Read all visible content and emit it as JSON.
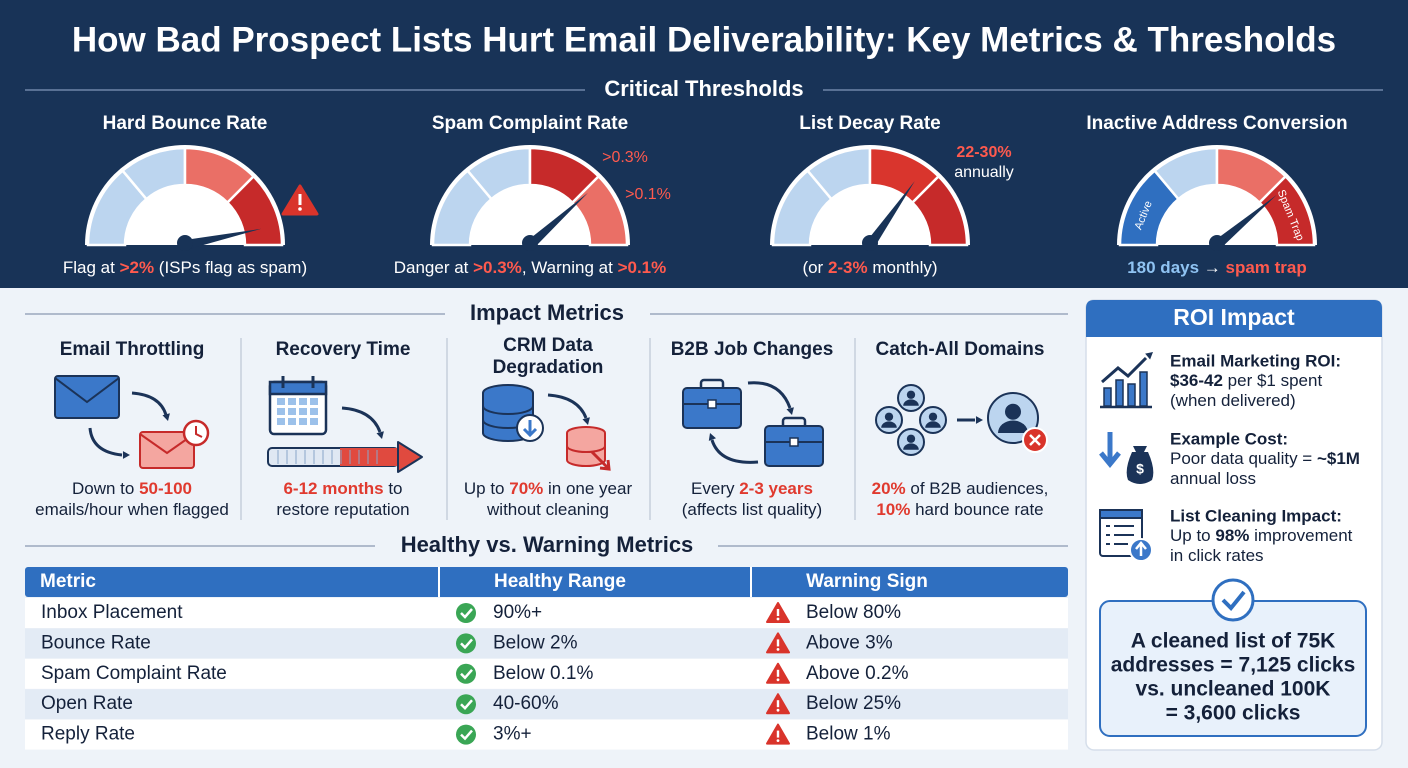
{
  "title": "How Bad Prospect Lists Hurt Email Deliverability: Key Metrics & Thresholds",
  "thresholds": {
    "heading": "Critical Thresholds",
    "gauges": [
      {
        "title": "Hard Bounce Rate",
        "caption": [
          {
            "text": "Flag at "
          },
          {
            "text": ">2%",
            "style": "red"
          },
          {
            "text": " (ISPs flag as spam)"
          }
        ]
      },
      {
        "title": "Spam Complaint Rate",
        "labels": [
          ">0.3%",
          ">0.1%"
        ],
        "caption": [
          {
            "text": "Danger at "
          },
          {
            "text": ">0.3%",
            "style": "red"
          },
          {
            "text": ", Warning at "
          },
          {
            "text": ">0.1%",
            "style": "red"
          }
        ]
      },
      {
        "title": "List Decay Rate",
        "labels": [
          "22-30%",
          "annually"
        ],
        "caption": [
          {
            "text": "(or "
          },
          {
            "text": "2-3%",
            "style": "red"
          },
          {
            "text": " monthly)"
          }
        ]
      },
      {
        "title": "Inactive Address Conversion",
        "labels": [
          "Active",
          "Spam Trap"
        ],
        "caption": [
          {
            "text": "180 days",
            "style": "blue"
          },
          {
            "text": " → "
          },
          {
            "text": "spam trap",
            "style": "red"
          }
        ]
      }
    ]
  },
  "impact": {
    "heading": "Impact Metrics",
    "items": [
      {
        "title": [
          "Email Throttling"
        ],
        "caption": [
          [
            {
              "text": "Down to "
            },
            {
              "text": "50-100",
              "style": "red"
            }
          ],
          [
            {
              "text": "emails/hour when flagged"
            }
          ]
        ]
      },
      {
        "title": [
          "Recovery Time"
        ],
        "caption": [
          [
            {
              "text": "6-12 months",
              "style": "red"
            },
            {
              "text": " to"
            }
          ],
          [
            {
              "text": "restore reputation"
            }
          ]
        ]
      },
      {
        "title": [
          "CRM Data",
          "Degradation"
        ],
        "caption": [
          [
            {
              "text": "Up to "
            },
            {
              "text": "70%",
              "style": "red"
            },
            {
              "text": " in one year"
            }
          ],
          [
            {
              "text": "without cleaning"
            }
          ]
        ]
      },
      {
        "title": [
          "B2B Job Changes"
        ],
        "caption": [
          [
            {
              "text": "Every "
            },
            {
              "text": "2-3 years",
              "style": "red"
            }
          ],
          [
            {
              "text": "(affects list quality)"
            }
          ]
        ]
      },
      {
        "title": [
          "Catch-All Domains"
        ],
        "caption": [
          [
            {
              "text": "20%",
              "style": "red"
            },
            {
              "text": " of B2B audiences,"
            }
          ],
          [
            {
              "text": "10%",
              "style": "red"
            },
            {
              "text": " hard bounce rate"
            }
          ]
        ]
      }
    ]
  },
  "comparison": {
    "heading": "Healthy vs. Warning Metrics",
    "columns": [
      "Metric",
      "Healthy Range",
      "Warning Sign"
    ],
    "rows": [
      [
        "Inbox Placement",
        "90%+",
        "Below 80%"
      ],
      [
        "Bounce Rate",
        "Below 2%",
        "Above 3%"
      ],
      [
        "Spam Complaint Rate",
        "Below 0.1%",
        "Above 0.2%"
      ],
      [
        "Open Rate",
        "40-60%",
        "Below 25%"
      ],
      [
        "Reply Rate",
        "3%+",
        "Below 1%"
      ]
    ]
  },
  "roi": {
    "heading": "ROI Impact",
    "items": [
      {
        "title": "Email Marketing ROI:",
        "lines": [
          [
            {
              "text": "$36-42",
              "style": "bold"
            },
            {
              "text": " per $1 spent"
            }
          ],
          [
            {
              "text": "(when delivered)"
            }
          ]
        ]
      },
      {
        "title": "Example Cost:",
        "lines": [
          [
            {
              "text": "Poor data quality = "
            },
            {
              "text": "~$1M",
              "style": "bold"
            }
          ],
          [
            {
              "text": "annual loss"
            }
          ]
        ]
      },
      {
        "title": "List Cleaning Impact:",
        "lines": [
          [
            {
              "text": "Up to "
            },
            {
              "text": "98%",
              "style": "bold"
            },
            {
              "text": " improvement"
            }
          ],
          [
            {
              "text": "in click rates"
            }
          ]
        ]
      }
    ],
    "summary": [
      "A cleaned list of 75K",
      "addresses = 7,125 clicks",
      "vs. uncleaned 100K",
      "= 3,600 clicks"
    ]
  }
}
